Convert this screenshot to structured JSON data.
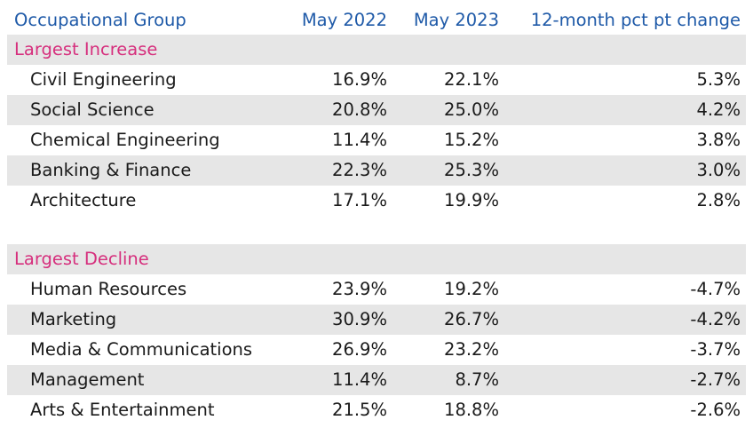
{
  "header": {
    "group_label": "Occupational Group",
    "may2022_label": "May 2022",
    "may2023_label": "May 2023",
    "change_label": "12-month pct pt change"
  },
  "increase": {
    "title": "Largest Increase",
    "rows": [
      {
        "name": "Civil Engineering",
        "may2022": "16.9%",
        "may2023": "22.1%",
        "change": "5.3%"
      },
      {
        "name": "Social Science",
        "may2022": "20.8%",
        "may2023": "25.0%",
        "change": "4.2%"
      },
      {
        "name": "Chemical Engineering",
        "may2022": "11.4%",
        "may2023": "15.2%",
        "change": "3.8%"
      },
      {
        "name": "Banking & Finance",
        "may2022": "22.3%",
        "may2023": "25.3%",
        "change": "3.0%"
      },
      {
        "name": "Architecture",
        "may2022": "17.1%",
        "may2023": "19.9%",
        "change": "2.8%"
      }
    ]
  },
  "decline": {
    "title": "Largest Decline",
    "rows": [
      {
        "name": "Human Resources",
        "may2022": "23.9%",
        "may2023": "19.2%",
        "change": "-4.7%"
      },
      {
        "name": "Marketing",
        "may2022": "30.9%",
        "may2023": "26.7%",
        "change": "-4.2%"
      },
      {
        "name": "Media & Communications",
        "may2022": "26.9%",
        "may2023": "23.2%",
        "change": "-3.7%"
      },
      {
        "name": "Management",
        "may2022": "11.4%",
        "may2023": "8.7%",
        "change": "-2.7%"
      },
      {
        "name": "Arts & Entertainment",
        "may2022": "21.5%",
        "may2023": "18.8%",
        "change": "-2.6%"
      }
    ]
  },
  "colors": {
    "header_text": "#1f5aa8",
    "section_text": "#d62f7d",
    "row_shade": "#e6e6e6"
  }
}
